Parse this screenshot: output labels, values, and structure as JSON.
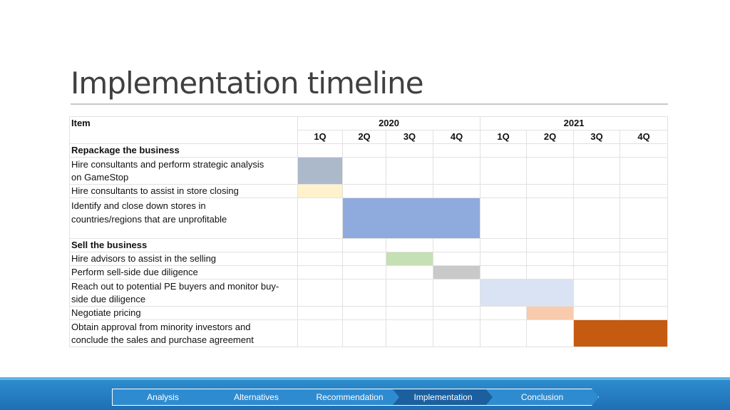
{
  "title": "Implementation timeline",
  "table": {
    "item_header": "Item",
    "years": [
      "2020",
      "2021"
    ],
    "quarters": [
      "1Q",
      "2Q",
      "3Q",
      "4Q",
      "1Q",
      "2Q",
      "3Q",
      "4Q"
    ],
    "sections": [
      {
        "label": "Repackage the business",
        "tasks": [
          {
            "line1": "Hire consultants and perform strategic analysis",
            "line2": "on GameStop",
            "start_quarter": 1,
            "end_quarter": 1,
            "color": "#acb9ca"
          },
          {
            "line1": "Hire consultants to assist in store closing",
            "line2": "",
            "start_quarter": 1,
            "end_quarter": 1,
            "color": "#fff2cc"
          },
          {
            "line1": "Identify and close down stores in",
            "line2": "countries/regions that are unprofitable",
            "start_quarter": 2,
            "end_quarter": 4,
            "color": "#8faadc"
          }
        ]
      },
      {
        "label": "Sell the business",
        "tasks": [
          {
            "line1": "Hire advisors to assist in the selling",
            "line2": "",
            "start_quarter": 3,
            "end_quarter": 3,
            "color": "#c5e0b4"
          },
          {
            "line1": "Perform sell-side due diligence",
            "line2": "",
            "start_quarter": 4,
            "end_quarter": 4,
            "color": "#c9c9c9"
          },
          {
            "line1": "Reach out to potential PE buyers and monitor buy-",
            "line2": "side due diligence",
            "start_quarter": 5,
            "end_quarter": 6,
            "color": "#dae3f3"
          },
          {
            "line1": "Negotiate pricing",
            "line2": "",
            "start_quarter": 6,
            "end_quarter": 6,
            "color": "#f8cbad"
          },
          {
            "line1": "Obtain approval from minority investors and",
            "line2": "conclude the sales and purchase agreement",
            "start_quarter": 7,
            "end_quarter": 8,
            "color": "#c55a11"
          }
        ]
      }
    ]
  },
  "nav": {
    "steps": [
      "Analysis",
      "Alternatives",
      "Recommendation",
      "Implementation",
      "Conclusion"
    ],
    "active": "Implementation"
  }
}
